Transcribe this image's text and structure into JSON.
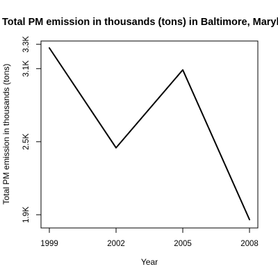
{
  "chart_data": {
    "type": "line",
    "title": "Total PM emission in thousands (tons) in Baltimore, Maryland",
    "xlabel": "Year",
    "ylabel": "Total PM emission in thousands (tons)",
    "x": [
      1999,
      2002,
      2005,
      2008
    ],
    "series": [
      {
        "values": [
          3.27,
          2.45,
          3.09,
          1.86
        ],
        "color": "#000000"
      }
    ],
    "x_ticks": [
      1999,
      2002,
      2005,
      2008
    ],
    "x_tick_labels": [
      "1999",
      "2002",
      "2005",
      "2008"
    ],
    "y_ticks": [
      1.9,
      2.5,
      3.1,
      3.3
    ],
    "y_tick_labels": [
      "1.9K",
      "2.5K",
      "3.1K",
      "3.3K"
    ],
    "xlim": [
      1999,
      2008
    ],
    "ylim": [
      1.86,
      3.27
    ],
    "grid": false,
    "legend": "none",
    "colors": {
      "background": "#ffffff",
      "text": "#000000",
      "axis": "#000000"
    }
  }
}
